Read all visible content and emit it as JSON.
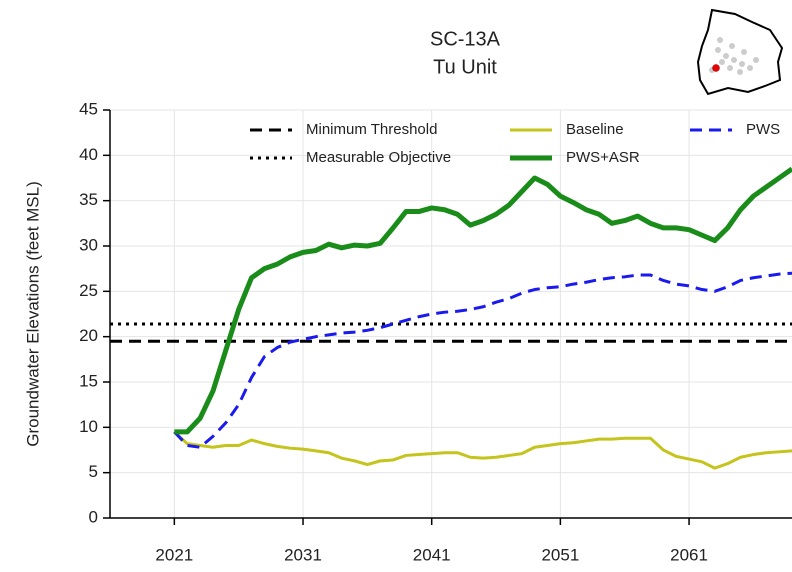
{
  "chart_data": {
    "type": "line",
    "title": "SC-13A",
    "subtitle": "Tu Unit",
    "y_label": "Groundwater Elevations (feet MSL)",
    "xlim": [
      2016,
      2069
    ],
    "xticks": [
      2021,
      2031,
      2041,
      2051,
      2061
    ],
    "ylim": [
      0,
      45
    ],
    "yticks": [
      0,
      5,
      10,
      15,
      20,
      25,
      30,
      35,
      40,
      45
    ],
    "grid": true,
    "reference_lines": [
      {
        "name": "Minimum Threshold",
        "value": 19.5,
        "color": "#000000",
        "style": "dashed"
      },
      {
        "name": "Measurable Objective",
        "value": 21.4,
        "color": "#000000",
        "style": "dotted"
      }
    ],
    "x": [
      2021,
      2022,
      2023,
      2024,
      2025,
      2026,
      2027,
      2028,
      2029,
      2030,
      2031,
      2032,
      2033,
      2034,
      2035,
      2036,
      2037,
      2038,
      2039,
      2040,
      2041,
      2042,
      2043,
      2044,
      2045,
      2046,
      2047,
      2048,
      2049,
      2050,
      2051,
      2052,
      2053,
      2054,
      2055,
      2056,
      2057,
      2058,
      2059,
      2060,
      2061,
      2062,
      2063,
      2064,
      2065,
      2066,
      2067,
      2068,
      2069
    ],
    "series": [
      {
        "name": "Baseline",
        "color": "#c4c41c",
        "style": "solid",
        "width": 3,
        "values": [
          9.5,
          8.2,
          8.0,
          7.8,
          8.0,
          8.0,
          8.6,
          8.2,
          7.9,
          7.7,
          7.6,
          7.4,
          7.2,
          6.6,
          6.3,
          5.9,
          6.3,
          6.4,
          6.9,
          7.0,
          7.1,
          7.2,
          7.2,
          6.7,
          6.6,
          6.7,
          6.9,
          7.1,
          7.8,
          8.0,
          8.2,
          8.3,
          8.5,
          8.7,
          8.7,
          8.8,
          8.8,
          8.8,
          7.5,
          6.8,
          6.5,
          6.2,
          5.5,
          6.0,
          6.7,
          7.0,
          7.2,
          7.3,
          7.4
        ]
      },
      {
        "name": "PWS",
        "color": "#1a1aee",
        "style": "dashed",
        "width": 3,
        "values": [
          9.5,
          8.0,
          7.8,
          9.0,
          10.5,
          12.5,
          15.5,
          17.8,
          18.8,
          19.4,
          19.7,
          20.0,
          20.2,
          20.4,
          20.5,
          20.7,
          21.0,
          21.4,
          21.8,
          22.2,
          22.5,
          22.7,
          22.8,
          23.0,
          23.3,
          23.8,
          24.2,
          24.8,
          25.2,
          25.4,
          25.5,
          25.8,
          26.0,
          26.3,
          26.5,
          26.6,
          26.8,
          26.8,
          26.2,
          25.8,
          25.6,
          25.2,
          25.0,
          25.5,
          26.2,
          26.5,
          26.7,
          26.9,
          27.0
        ]
      },
      {
        "name": "PWS+ASR",
        "color": "#198c19",
        "style": "solid",
        "width": 5,
        "values": [
          9.5,
          9.5,
          11.0,
          14.0,
          18.5,
          23.0,
          26.5,
          27.5,
          28.0,
          28.8,
          29.3,
          29.5,
          30.2,
          29.8,
          30.1,
          30.0,
          30.3,
          32.0,
          33.8,
          33.8,
          34.2,
          34.0,
          33.5,
          32.3,
          32.8,
          33.5,
          34.5,
          36.0,
          37.5,
          36.8,
          35.5,
          34.8,
          34.0,
          33.5,
          32.5,
          32.8,
          33.3,
          32.5,
          32.0,
          32.0,
          31.8,
          31.2,
          30.6,
          32.0,
          34.0,
          35.5,
          36.5,
          37.5,
          38.5
        ]
      }
    ]
  }
}
